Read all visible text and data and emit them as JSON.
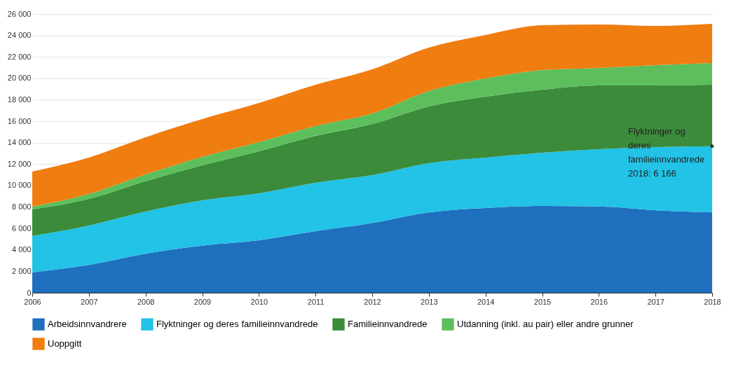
{
  "chart_data": {
    "type": "area",
    "stacked": true,
    "x": [
      2006,
      2007,
      2008,
      2009,
      2010,
      2011,
      2012,
      2013,
      2014,
      2015,
      2016,
      2017,
      2018
    ],
    "series": [
      {
        "name": "Arbeidsinnvandrere",
        "color": "#1f6fbf",
        "values": [
          1900,
          2600,
          3650,
          4400,
          4900,
          5750,
          6500,
          7500,
          7900,
          8100,
          8050,
          7700,
          7500
        ]
      },
      {
        "name": "Flyktninger og deres familieinnvandrede",
        "color": "#22c3e6",
        "values": [
          3400,
          3670,
          3930,
          4220,
          4380,
          4510,
          4480,
          4590,
          4710,
          4970,
          5340,
          5890,
          6166
        ]
      },
      {
        "name": "Familieinnvandrede",
        "color": "#3b8b3b",
        "values": [
          2470,
          2480,
          2820,
          3270,
          3920,
          4370,
          4760,
          5290,
          5680,
          5870,
          5950,
          5750,
          5730
        ]
      },
      {
        "name": "Utdanning (inkl. au pair) eller andre grunner",
        "color": "#5cbf5c",
        "values": [
          270,
          460,
          640,
          780,
          840,
          920,
          980,
          1430,
          1700,
          1830,
          1630,
          1890,
          2030
        ]
      },
      {
        "name": "Uoppgitt",
        "color": "#f07d10",
        "values": [
          3260,
          3400,
          3460,
          3530,
          3660,
          3850,
          4120,
          4050,
          4050,
          4180,
          4050,
          3660,
          3660
        ]
      }
    ],
    "xlim": [
      2006,
      2018
    ],
    "xticks": [
      2006,
      2007,
      2008,
      2009,
      2010,
      2011,
      2012,
      2013,
      2014,
      2015,
      2016,
      2017,
      2018
    ],
    "ylim": [
      0,
      26000
    ],
    "yticks": [
      0,
      {
        "value": 2000,
        "label": "2 000"
      },
      {
        "value": 4000,
        "label": "4 000"
      },
      {
        "value": 6000,
        "label": "6 000"
      },
      {
        "value": 8000,
        "label": "8 000"
      },
      {
        "value": 10000,
        "label": "10 000"
      },
      {
        "value": 12000,
        "label": "12 000"
      },
      {
        "value": 14000,
        "label": "14 000"
      },
      {
        "value": 16000,
        "label": "16 000"
      },
      {
        "value": 18000,
        "label": "18 000"
      },
      {
        "value": 20000,
        "label": "20 000"
      },
      {
        "value": 22000,
        "label": "22 000"
      },
      {
        "value": 24000,
        "label": "24 000"
      },
      {
        "value": 26000,
        "label": "26 000"
      }
    ],
    "grid": "y",
    "legend": "bottom",
    "annotations": [
      {
        "text": "Flyktninger og\nderes\nfamilieinnvandrede\n2018: 6 166",
        "x": 2018,
        "y": 13666
      }
    ]
  }
}
